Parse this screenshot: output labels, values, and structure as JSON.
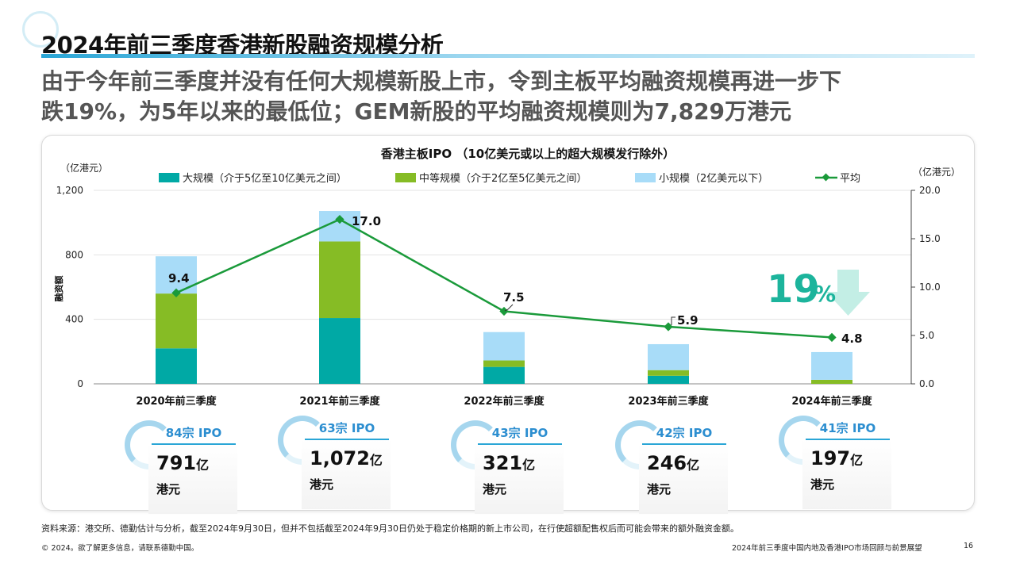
{
  "page": {
    "title": "2024年前三季度香港新股融资规模分析",
    "subtitle_line1": "由于今年前三季度并没有任何大规模新股上市，令到主板平均融资规模再进一步下",
    "subtitle_line2": "跌19%，为5年以来的最低位；GEM新股的平均融资规模则为7,829万港元"
  },
  "chart_data": {
    "type": "bar",
    "stacked": true,
    "title": "香港主板IPO （10亿美元或以上的超大规模发行除外）",
    "categories": [
      "2020年前三季度",
      "2021年前三季度",
      "2022年前三季度",
      "2023年前三季度",
      "2024年前三季度"
    ],
    "series": [
      {
        "name": "大规模（介于5亿至10亿美元之间）",
        "color": "#00a9a5",
        "values": [
          220,
          408,
          105,
          50,
          0
        ]
      },
      {
        "name": "中等规模（介于2亿至5亿美元之间）",
        "color": "#86bc25",
        "values": [
          340,
          475,
          40,
          35,
          25
        ]
      },
      {
        "name": "小规模（2亿美元以下）",
        "color": "#a8dcf8",
        "values": [
          231,
          189,
          176,
          161,
          172
        ]
      }
    ],
    "line": {
      "name": "平均",
      "color": "#1a9a3a",
      "values": [
        9.4,
        17.0,
        7.5,
        5.9,
        4.8
      ]
    },
    "line_labels": [
      "9.4",
      "17.0",
      "7.5",
      "5.9",
      "4.8"
    ],
    "y_left": {
      "unit": "（亿港元）",
      "label": "融资额",
      "ylim": [
        0,
        1200
      ],
      "ticks": [
        "0",
        "400",
        "800",
        "1,200"
      ],
      "tick_values": [
        0,
        400,
        800,
        1200
      ]
    },
    "y_right": {
      "unit": "（亿港元）",
      "ylim": [
        0,
        20
      ],
      "ticks": [
        "0.0",
        "5.0",
        "10.0",
        "15.0",
        "20.0"
      ],
      "tick_values": [
        0,
        5,
        10,
        15,
        20
      ]
    },
    "grid": true,
    "legend_position": "top",
    "annotation": {
      "number": "19",
      "unit": "%",
      "direction": "down",
      "color": "#1cb49c"
    }
  },
  "cards": [
    {
      "count": "84宗 IPO",
      "amount": "791",
      "unit": "亿",
      "currency": "港元"
    },
    {
      "count": "63宗 IPO",
      "amount": "1,072",
      "unit": "亿",
      "currency": "港元"
    },
    {
      "count": "43宗 IPO",
      "amount": "321",
      "unit": "亿",
      "currency": "港元"
    },
    {
      "count": "42宗 IPO",
      "amount": "246",
      "unit": "亿",
      "currency": "港元"
    },
    {
      "count": "41宗 IPO",
      "amount": "197",
      "unit": "亿",
      "currency": "港元"
    }
  ],
  "footer": {
    "source": "资料来源：港交所、德勤估计与分析，截至2024年9月30日，但并不包括截至2024年9月30日仍处于稳定价格期的新上市公司，在行使超额配售权后而可能会带来的额外融资金额。",
    "copyright": "© 2024。欲了解更多信息，请联系德勤中国。",
    "report": "2024年前三季度中国内地及香港IPO市场回顾与前景展望",
    "page_number": "16"
  }
}
